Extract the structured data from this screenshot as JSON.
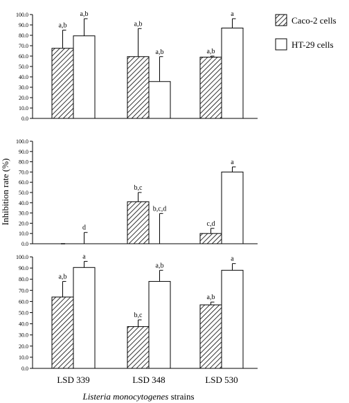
{
  "chart_data": {
    "type": "bar",
    "categories": [
      "LSD 339",
      "LSD 348",
      "LSD 530"
    ],
    "xlabel_italic": "Listeria monocytogenes",
    "xlabel_rest": " strains",
    "ylabel": "Inhibition rate (%)",
    "ylim": [
      0,
      100
    ],
    "yticks": [
      "0.0",
      "10.0",
      "20.0",
      "30.0",
      "40.0",
      "50.0",
      "60.0",
      "70.0",
      "80.0",
      "90.0",
      "100.0"
    ],
    "legend": {
      "placement": "top-right",
      "entries": [
        {
          "name": "Caco-2 cells",
          "fill": "hatched"
        },
        {
          "name": "HT-29 cells",
          "fill": "white"
        }
      ]
    },
    "panels": [
      {
        "series": [
          {
            "name": "Caco-2 cells",
            "values": [
              67.5,
              59.5,
              59.0
            ],
            "errors": [
              17.5,
              27.0,
              1.0
            ],
            "labels": [
              "a,b",
              "a,b",
              "a,b"
            ]
          },
          {
            "name": "HT-29 cells",
            "values": [
              79.5,
              35.5,
              87.0
            ],
            "errors": [
              16.5,
              24.0,
              9.0
            ],
            "labels": [
              "a,b",
              "a,b",
              "a"
            ]
          }
        ]
      },
      {
        "series": [
          {
            "name": "Caco-2 cells",
            "values": [
              0.0,
              41.0,
              10.0
            ],
            "errors": [
              0.0,
              9.0,
              5.0
            ],
            "labels": [
              "",
              "b,c",
              "c,d"
            ]
          },
          {
            "name": "HT-29 cells",
            "values": [
              0.0,
              0.0,
              70.0
            ],
            "errors": [
              11.0,
              29.5,
              5.0
            ],
            "labels": [
              "d",
              "b,c,d",
              "a"
            ]
          }
        ]
      },
      {
        "series": [
          {
            "name": "Caco-2 cells",
            "values": [
              64.0,
              37.5,
              57.0
            ],
            "errors": [
              14.0,
              6.0,
              2.5
            ],
            "labels": [
              "a,b",
              "b,c",
              "a,b"
            ]
          },
          {
            "name": "HT-29 cells",
            "values": [
              90.5,
              78.0,
              88.0
            ],
            "errors": [
              5.5,
              10.0,
              6.0
            ],
            "labels": [
              "a",
              "a,b",
              "a"
            ]
          }
        ]
      }
    ]
  }
}
